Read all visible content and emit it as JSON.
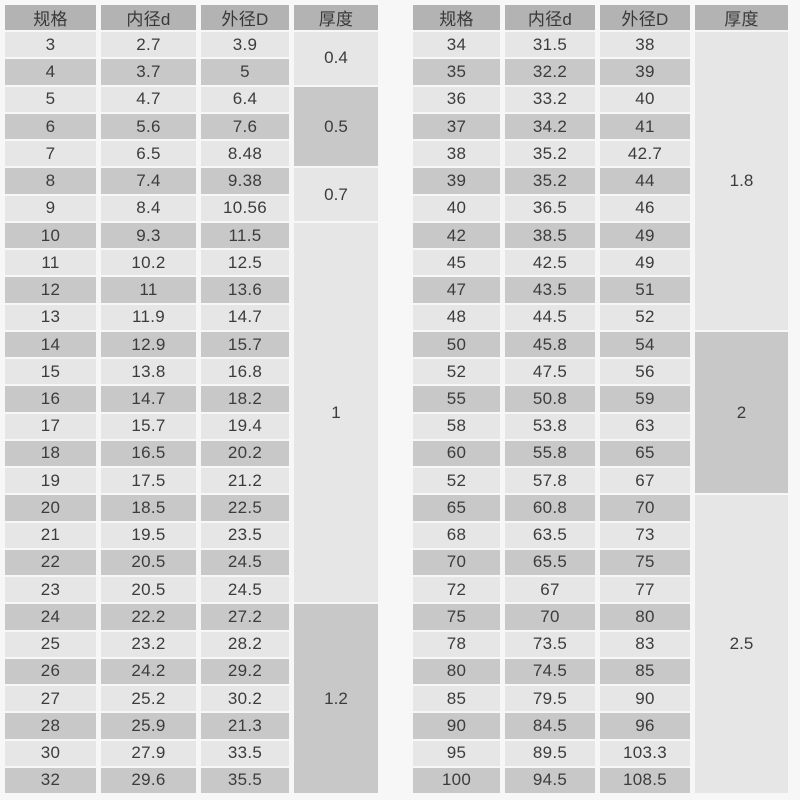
{
  "colors": {
    "background": "#f7f7f7",
    "header_bg": "#b3b3b3",
    "row_light": "#e6e6e6",
    "row_dark": "#c8c8c8",
    "text": "#3c3c3c"
  },
  "tables": [
    {
      "side": "left",
      "headers": [
        "规格",
        "内径d",
        "外径D",
        "厚度"
      ],
      "rows": [
        [
          "3",
          "2.7",
          "3.9"
        ],
        [
          "4",
          "3.7",
          "5"
        ],
        [
          "5",
          "4.7",
          "6.4"
        ],
        [
          "6",
          "5.6",
          "7.6"
        ],
        [
          "7",
          "6.5",
          "8.48"
        ],
        [
          "8",
          "7.4",
          "9.38"
        ],
        [
          "9",
          "8.4",
          "10.56"
        ],
        [
          "10",
          "9.3",
          "11.5"
        ],
        [
          "11",
          "10.2",
          "12.5"
        ],
        [
          "12",
          "11",
          "13.6"
        ],
        [
          "13",
          "11.9",
          "14.7"
        ],
        [
          "14",
          "12.9",
          "15.7"
        ],
        [
          "15",
          "13.8",
          "16.8"
        ],
        [
          "16",
          "14.7",
          "18.2"
        ],
        [
          "17",
          "15.7",
          "19.4"
        ],
        [
          "18",
          "16.5",
          "20.2"
        ],
        [
          "19",
          "17.5",
          "21.2"
        ],
        [
          "20",
          "18.5",
          "22.5"
        ],
        [
          "21",
          "19.5",
          "23.5"
        ],
        [
          "22",
          "20.5",
          "24.5"
        ],
        [
          "23",
          "20.5",
          "24.5"
        ],
        [
          "24",
          "22.2",
          "27.2"
        ],
        [
          "25",
          "23.2",
          "28.2"
        ],
        [
          "26",
          "24.2",
          "29.2"
        ],
        [
          "27",
          "25.2",
          "30.2"
        ],
        [
          "28",
          "25.9",
          "21.3"
        ],
        [
          "30",
          "27.9",
          "33.5"
        ],
        [
          "32",
          "29.6",
          "35.5"
        ]
      ],
      "thickness_blocks": [
        {
          "value": "0.4",
          "start": 1,
          "span": 2,
          "shade": "light"
        },
        {
          "value": "0.5",
          "start": 3,
          "span": 3,
          "shade": "dark"
        },
        {
          "value": "0.7",
          "start": 6,
          "span": 2,
          "shade": "light"
        },
        {
          "value": "1",
          "start": 8,
          "span": 14,
          "shade": "light"
        },
        {
          "value": "1.2",
          "start": 22,
          "span": 7,
          "shade": "dark"
        }
      ]
    },
    {
      "side": "right",
      "headers": [
        "规格",
        "内径d",
        "外径D",
        "厚度"
      ],
      "rows": [
        [
          "34",
          "31.5",
          "38"
        ],
        [
          "35",
          "32.2",
          "39"
        ],
        [
          "36",
          "33.2",
          "40"
        ],
        [
          "37",
          "34.2",
          "41"
        ],
        [
          "38",
          "35.2",
          "42.7"
        ],
        [
          "39",
          "35.2",
          "44"
        ],
        [
          "40",
          "36.5",
          "46"
        ],
        [
          "42",
          "38.5",
          "49"
        ],
        [
          "45",
          "42.5",
          "49"
        ],
        [
          "47",
          "43.5",
          "51"
        ],
        [
          "48",
          "44.5",
          "52"
        ],
        [
          "50",
          "45.8",
          "54"
        ],
        [
          "52",
          "47.5",
          "56"
        ],
        [
          "55",
          "50.8",
          "59"
        ],
        [
          "58",
          "53.8",
          "63"
        ],
        [
          "60",
          "55.8",
          "65"
        ],
        [
          "52",
          "57.8",
          "67"
        ],
        [
          "65",
          "60.8",
          "70"
        ],
        [
          "68",
          "63.5",
          "73"
        ],
        [
          "70",
          "65.5",
          "75"
        ],
        [
          "72",
          "67",
          "77"
        ],
        [
          "75",
          "70",
          "80"
        ],
        [
          "78",
          "73.5",
          "83"
        ],
        [
          "80",
          "74.5",
          "85"
        ],
        [
          "85",
          "79.5",
          "90"
        ],
        [
          "90",
          "84.5",
          "96"
        ],
        [
          "95",
          "89.5",
          "103.3"
        ],
        [
          "100",
          "94.5",
          "108.5"
        ]
      ],
      "thickness_blocks": [
        {
          "value": "1.8",
          "start": 1,
          "span": 11,
          "shade": "light"
        },
        {
          "value": "2",
          "start": 12,
          "span": 6,
          "shade": "dark"
        },
        {
          "value": "2.5",
          "start": 18,
          "span": 11,
          "shade": "light"
        }
      ]
    }
  ]
}
